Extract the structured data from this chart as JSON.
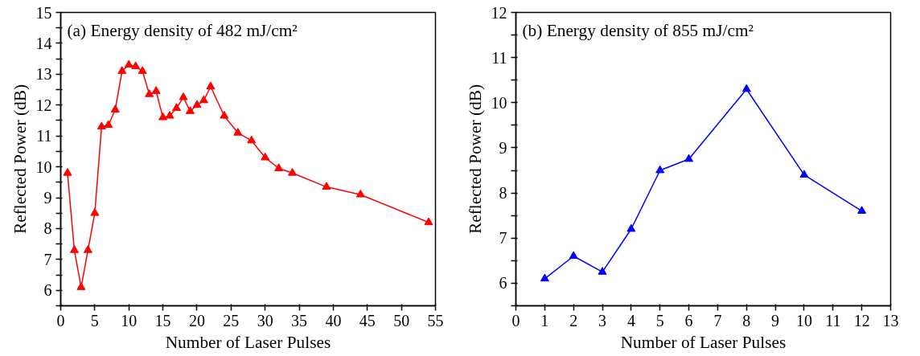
{
  "chart_data": [
    {
      "type": "line",
      "xlabel": "Number of Laser Pulses",
      "ylabel": "Reflected Power (dB)",
      "annotations": [
        "(a)  Energy density of 482 mJ/cm²"
      ],
      "marker": "triangle",
      "line_style": "solid",
      "grid": false,
      "x": [
        1,
        2,
        3,
        4,
        5,
        6,
        7,
        8,
        9,
        10,
        11,
        12,
        13,
        14,
        15,
        16,
        17,
        18,
        19,
        20,
        21,
        22,
        24,
        26,
        28,
        30,
        32,
        34,
        39,
        44,
        54
      ],
      "series": [
        {
          "color": "#ff0000",
          "values": [
            9.8,
            7.3,
            6.1,
            7.3,
            8.5,
            11.3,
            11.35,
            11.85,
            13.1,
            13.3,
            13.25,
            13.1,
            12.35,
            12.45,
            11.6,
            11.65,
            11.9,
            12.25,
            11.8,
            12.0,
            12.15,
            12.6,
            11.65,
            11.1,
            10.85,
            10.3,
            9.95,
            9.8,
            9.35,
            9.1,
            8.2
          ]
        }
      ],
      "xlim": [
        0,
        55
      ],
      "xticks": [
        0,
        5,
        10,
        15,
        20,
        25,
        30,
        35,
        40,
        45,
        50,
        55
      ],
      "ylim": [
        5.5,
        15
      ],
      "yticks": [
        {
          "value": 5.5,
          "label": null
        },
        6,
        {
          "value": 6.5,
          "label": null
        },
        7,
        {
          "value": 7.5,
          "label": null
        },
        8,
        {
          "value": 8.5,
          "label": null
        },
        9,
        {
          "value": 9.5,
          "label": null
        },
        10,
        {
          "value": 10.5,
          "label": null
        },
        11,
        {
          "value": 11.5,
          "label": null
        },
        12,
        {
          "value": 12.5,
          "label": null
        },
        13,
        {
          "value": 13.5,
          "label": null
        },
        14,
        {
          "value": 14.5,
          "label": null
        },
        15
      ]
    },
    {
      "type": "line",
      "xlabel": "Number of Laser Pulses",
      "ylabel": "Reflected Power (dB)",
      "annotations": [
        "(b)  Energy density of 855 mJ/cm²"
      ],
      "marker": "triangle",
      "line_style": "solid",
      "grid": false,
      "x": [
        1,
        2,
        3,
        4,
        5,
        6,
        8,
        10,
        12
      ],
      "series": [
        {
          "color": "#0000ff",
          "values": [
            6.1,
            6.6,
            6.25,
            7.2,
            8.5,
            8.75,
            10.3,
            8.4,
            7.6
          ]
        }
      ],
      "xlim": [
        0,
        13
      ],
      "xticks": [
        0,
        1,
        2,
        3,
        4,
        5,
        6,
        7,
        8,
        9,
        10,
        11,
        12,
        13
      ],
      "ylim": [
        5.5,
        12
      ],
      "yticks": [
        {
          "value": 5.5,
          "label": null
        },
        6,
        {
          "value": 6.5,
          "label": null
        },
        7,
        {
          "value": 7.5,
          "label": null
        },
        8,
        {
          "value": 8.5,
          "label": null
        },
        9,
        {
          "value": 9.5,
          "label": null
        },
        10,
        {
          "value": 10.5,
          "label": null
        },
        11,
        {
          "value": 11.5,
          "label": null
        },
        12
      ]
    }
  ]
}
